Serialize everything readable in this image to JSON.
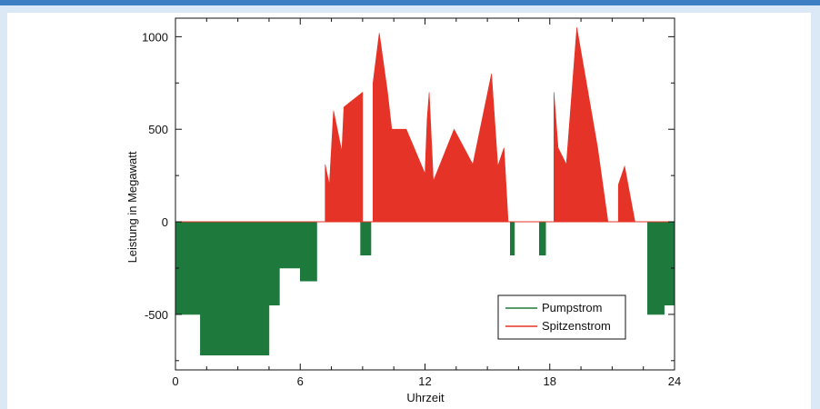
{
  "chart_data": {
    "type": "area",
    "xlabel": "Uhrzeit",
    "ylabel": "Leistung in Megawatt",
    "xlim": [
      0,
      24
    ],
    "ylim": [
      -800,
      1100
    ],
    "xticks": [
      0,
      6,
      12,
      18,
      24
    ],
    "yticks": [
      -500,
      0,
      500,
      1000
    ],
    "grid": false,
    "legend_position": "bottom-right",
    "series": [
      {
        "name": "Pumpstrom",
        "color": "#1e7a3c",
        "points": [
          [
            0,
            0
          ],
          [
            0,
            -500
          ],
          [
            1.2,
            -500
          ],
          [
            1.2,
            -720
          ],
          [
            4.5,
            -720
          ],
          [
            4.5,
            -450
          ],
          [
            5,
            -450
          ],
          [
            5,
            -250
          ],
          [
            6,
            -250
          ],
          [
            6,
            -320
          ],
          [
            6.8,
            -320
          ],
          [
            6.8,
            0
          ],
          [
            8.9,
            0
          ],
          [
            8.9,
            -180
          ],
          [
            9.4,
            -180
          ],
          [
            9.4,
            0
          ],
          [
            16.1,
            0
          ],
          [
            16.1,
            -180
          ],
          [
            16.3,
            -180
          ],
          [
            16.3,
            0
          ],
          [
            17.5,
            0
          ],
          [
            17.5,
            -180
          ],
          [
            17.8,
            -180
          ],
          [
            17.8,
            0
          ],
          [
            22.7,
            0
          ],
          [
            22.7,
            -500
          ],
          [
            23.5,
            -500
          ],
          [
            23.5,
            -450
          ],
          [
            24,
            -450
          ],
          [
            24,
            0
          ]
        ]
      },
      {
        "name": "Spitzenstrom",
        "color": "#e63327",
        "points": [
          [
            7.2,
            0
          ],
          [
            7.2,
            310
          ],
          [
            7.4,
            200
          ],
          [
            7.6,
            600
          ],
          [
            8.0,
            380
          ],
          [
            8.1,
            620
          ],
          [
            9.0,
            700
          ],
          [
            9.0,
            0
          ],
          [
            9.5,
            0
          ],
          [
            9.5,
            750
          ],
          [
            9.8,
            1020
          ],
          [
            10.2,
            700
          ],
          [
            10.4,
            500
          ],
          [
            11.1,
            500
          ],
          [
            12.0,
            260
          ],
          [
            12.1,
            550
          ],
          [
            12.2,
            700
          ],
          [
            12.4,
            220
          ],
          [
            13.4,
            500
          ],
          [
            14.3,
            310
          ],
          [
            15.2,
            800
          ],
          [
            15.5,
            300
          ],
          [
            15.8,
            400
          ],
          [
            16.0,
            0
          ],
          [
            18.2,
            0
          ],
          [
            18.2,
            700
          ],
          [
            18.4,
            400
          ],
          [
            18.8,
            310
          ],
          [
            19.3,
            1050
          ],
          [
            20.3,
            400
          ],
          [
            20.8,
            0
          ],
          [
            21.3,
            0
          ],
          [
            21.3,
            200
          ],
          [
            21.6,
            300
          ],
          [
            22.1,
            0
          ]
        ]
      }
    ]
  }
}
